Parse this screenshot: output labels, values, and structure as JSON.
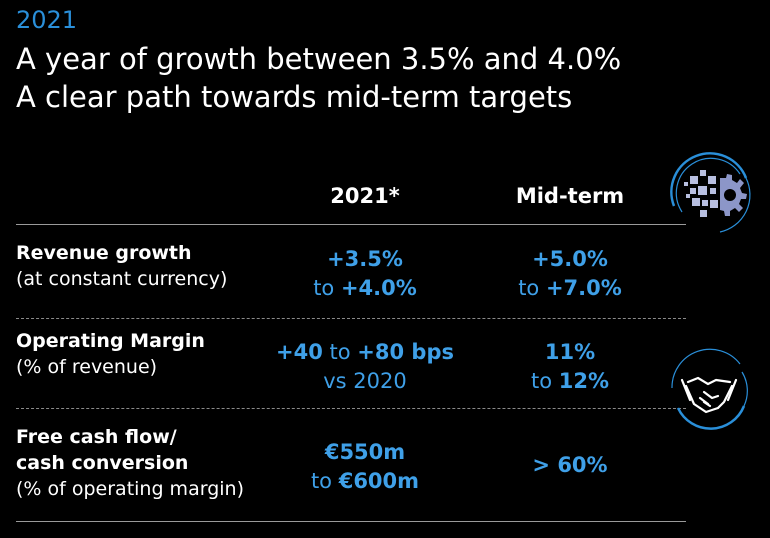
{
  "header": {
    "year": "2021",
    "line1": "A year of growth between 3.5% and 4.0%",
    "line2": "A clear path towards mid-term targets"
  },
  "columns": {
    "current": "2021*",
    "midterm": "Mid-term"
  },
  "rows": [
    {
      "label_bold": "Revenue growth",
      "label_note": "(at constant currency)",
      "current": {
        "p1": "+3.5%",
        "p2a": "to ",
        "p2b": "+4.0%"
      },
      "midterm": {
        "p1": "+5.0%",
        "p2a": "to ",
        "p2b": "+7.0%"
      }
    },
    {
      "label_bold": "Operating Margin",
      "label_note": "(% of revenue)",
      "current": {
        "p1a": "+40",
        "p1b": " to ",
        "p1c": "+80 bps",
        "p2": "vs 2020"
      },
      "midterm": {
        "p1": "11%",
        "p2a": "to ",
        "p2b": "12%"
      }
    },
    {
      "label_bold1": "Free cash flow/",
      "label_bold2": "cash conversion",
      "label_note": "(% of operating margin)",
      "current": {
        "p1": "€550m",
        "p2a": "to ",
        "p2b": "€600m"
      },
      "midterm": {
        "p1": "> 60%"
      }
    }
  ],
  "icons": {
    "top": "digital-gear-icon",
    "bottom": "handshake-icon"
  },
  "colors": {
    "background": "#000000",
    "accent": "#3fa0e8",
    "year": "#2a8fd9",
    "text": "#ffffff"
  }
}
